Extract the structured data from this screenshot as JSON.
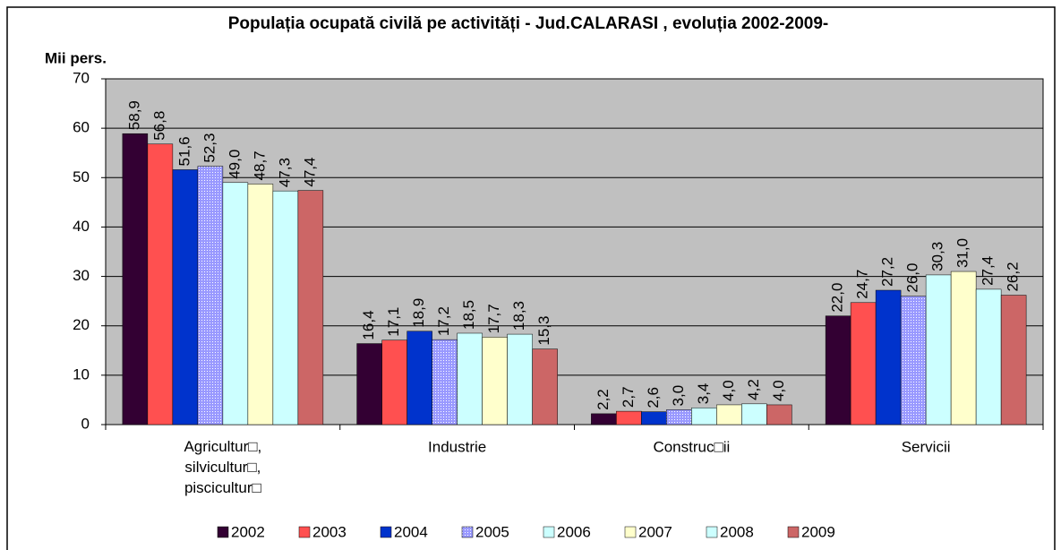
{
  "chart_data": {
    "type": "bar",
    "title": "Populația ocupată civilă pe activități - Jud.CALARASI , evoluția 2002-2009-",
    "y_axis_label": "Mii pers.",
    "categories": [
      "Agricultur□, silvicultur□, piscicultur□",
      "Industrie",
      "Construc□ii",
      "Servicii"
    ],
    "series": [
      {
        "name": "2002",
        "color": "#330033",
        "values": [
          58.9,
          16.4,
          2.2,
          22.0
        ],
        "value_labels": [
          "58,9",
          "16,4",
          "2,2",
          "22,0"
        ]
      },
      {
        "name": "2003",
        "color": "#ff5050",
        "values": [
          56.8,
          17.1,
          2.7,
          24.7
        ],
        "value_labels": [
          "56,8",
          "17,1",
          "2,7",
          "24,7"
        ]
      },
      {
        "name": "2004",
        "color": "#0033cc",
        "values": [
          51.6,
          18.9,
          2.6,
          27.2
        ],
        "value_labels": [
          "51,6",
          "18,9",
          "2,6",
          "27,2"
        ]
      },
      {
        "name": "2005",
        "color": "#9999ff",
        "values": [
          52.3,
          17.2,
          3.0,
          26.0
        ],
        "value_labels": [
          "52,3",
          "17,2",
          "3,0",
          "26,0"
        ]
      },
      {
        "name": "2006",
        "color": "#ccffff",
        "values": [
          49.0,
          18.5,
          3.4,
          30.3
        ],
        "value_labels": [
          "49,0",
          "18,5",
          "3,4",
          "30,3"
        ]
      },
      {
        "name": "2007",
        "color": "#ffffcc",
        "values": [
          48.7,
          17.7,
          4.0,
          31.0
        ],
        "value_labels": [
          "48,7",
          "17,7",
          "4,0",
          "31,0"
        ]
      },
      {
        "name": "2008",
        "color": "#ccffff",
        "values": [
          47.3,
          18.3,
          4.2,
          27.4
        ],
        "value_labels": [
          "47,3",
          "18,3",
          "4,2",
          "27,4"
        ]
      },
      {
        "name": "2009",
        "color": "#cc6666",
        "values": [
          47.4,
          15.3,
          4.0,
          26.2
        ],
        "value_labels": [
          "47,4",
          "15,3",
          "4,0",
          "26,2"
        ]
      }
    ],
    "ylim": [
      0,
      70
    ],
    "yticks": [
      0,
      10,
      20,
      30,
      40,
      50,
      60,
      70
    ],
    "grid": true,
    "legend": "bottom"
  }
}
